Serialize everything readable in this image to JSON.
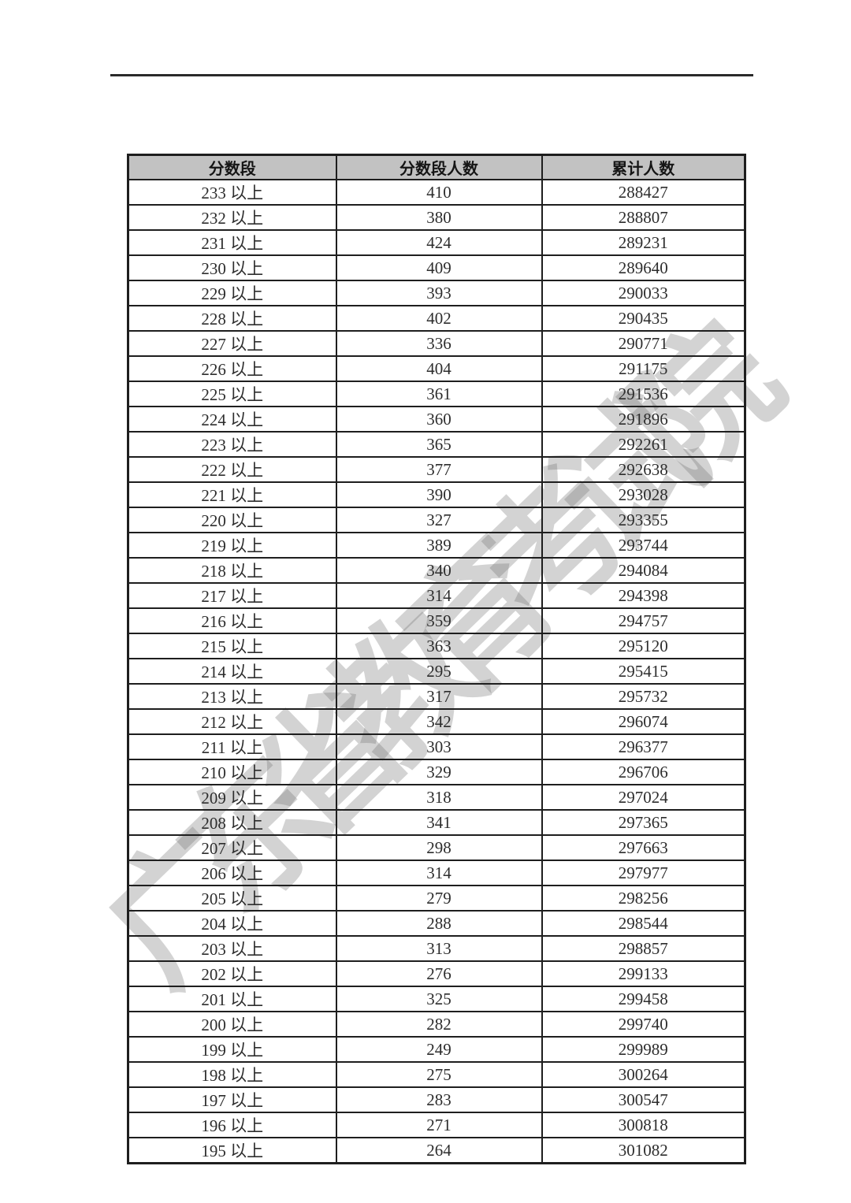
{
  "watermark": {
    "text": "广东省教育考试院",
    "color": "#d4d4d4"
  },
  "divider": {
    "color": "#2a2a2a"
  },
  "table": {
    "header_bg": "#c2c2c2",
    "border_color": "#1e1e1e",
    "columns": [
      "分数段",
      "分数段人数",
      "累计人数"
    ],
    "rows": [
      {
        "band": "233 以上",
        "count": "410",
        "cum": "288427"
      },
      {
        "band": "232 以上",
        "count": "380",
        "cum": "288807"
      },
      {
        "band": "231 以上",
        "count": "424",
        "cum": "289231"
      },
      {
        "band": "230 以上",
        "count": "409",
        "cum": "289640"
      },
      {
        "band": "229 以上",
        "count": "393",
        "cum": "290033"
      },
      {
        "band": "228 以上",
        "count": "402",
        "cum": "290435"
      },
      {
        "band": "227 以上",
        "count": "336",
        "cum": "290771"
      },
      {
        "band": "226 以上",
        "count": "404",
        "cum": "291175"
      },
      {
        "band": "225 以上",
        "count": "361",
        "cum": "291536"
      },
      {
        "band": "224 以上",
        "count": "360",
        "cum": "291896"
      },
      {
        "band": "223 以上",
        "count": "365",
        "cum": "292261"
      },
      {
        "band": "222 以上",
        "count": "377",
        "cum": "292638"
      },
      {
        "band": "221 以上",
        "count": "390",
        "cum": "293028"
      },
      {
        "band": "220 以上",
        "count": "327",
        "cum": "293355"
      },
      {
        "band": "219 以上",
        "count": "389",
        "cum": "293744"
      },
      {
        "band": "218 以上",
        "count": "340",
        "cum": "294084"
      },
      {
        "band": "217 以上",
        "count": "314",
        "cum": "294398"
      },
      {
        "band": "216 以上",
        "count": "359",
        "cum": "294757"
      },
      {
        "band": "215 以上",
        "count": "363",
        "cum": "295120"
      },
      {
        "band": "214 以上",
        "count": "295",
        "cum": "295415"
      },
      {
        "band": "213 以上",
        "count": "317",
        "cum": "295732"
      },
      {
        "band": "212 以上",
        "count": "342",
        "cum": "296074"
      },
      {
        "band": "211 以上",
        "count": "303",
        "cum": "296377"
      },
      {
        "band": "210 以上",
        "count": "329",
        "cum": "296706"
      },
      {
        "band": "209 以上",
        "count": "318",
        "cum": "297024"
      },
      {
        "band": "208 以上",
        "count": "341",
        "cum": "297365"
      },
      {
        "band": "207 以上",
        "count": "298",
        "cum": "297663"
      },
      {
        "band": "206 以上",
        "count": "314",
        "cum": "297977"
      },
      {
        "band": "205 以上",
        "count": "279",
        "cum": "298256"
      },
      {
        "band": "204 以上",
        "count": "288",
        "cum": "298544"
      },
      {
        "band": "203 以上",
        "count": "313",
        "cum": "298857"
      },
      {
        "band": "202 以上",
        "count": "276",
        "cum": "299133"
      },
      {
        "band": "201 以上",
        "count": "325",
        "cum": "299458"
      },
      {
        "band": "200 以上",
        "count": "282",
        "cum": "299740"
      },
      {
        "band": "199 以上",
        "count": "249",
        "cum": "299989"
      },
      {
        "band": "198 以上",
        "count": "275",
        "cum": "300264"
      },
      {
        "band": "197 以上",
        "count": "283",
        "cum": "300547"
      },
      {
        "band": "196 以上",
        "count": "271",
        "cum": "300818"
      },
      {
        "band": "195 以上",
        "count": "264",
        "cum": "301082"
      }
    ]
  }
}
